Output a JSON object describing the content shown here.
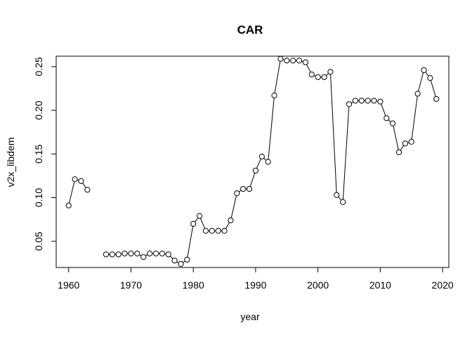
{
  "chart_data": {
    "type": "line",
    "title": "CAR",
    "xlabel": "year",
    "ylabel": "v2x_libdem",
    "xlim": [
      1958,
      2021
    ],
    "ylim": [
      0.02,
      0.262
    ],
    "xticks": [
      1960,
      1970,
      1980,
      1990,
      2000,
      2010,
      2020
    ],
    "yticks": [
      0.05,
      0.1,
      0.15,
      0.2,
      0.25
    ],
    "ytick_labels": [
      "0.05",
      "0.10",
      "0.15",
      "0.20",
      "0.25"
    ],
    "grid": false,
    "marker": "open-circle",
    "x": [
      1960,
      1961,
      1962,
      1963,
      1964,
      1965,
      1966,
      1967,
      1968,
      1969,
      1970,
      1971,
      1972,
      1973,
      1974,
      1975,
      1976,
      1977,
      1978,
      1979,
      1980,
      1981,
      1982,
      1983,
      1984,
      1985,
      1986,
      1987,
      1988,
      1989,
      1990,
      1991,
      1992,
      1993,
      1994,
      1995,
      1996,
      1997,
      1998,
      1999,
      2000,
      2001,
      2002,
      2003,
      2004,
      2005,
      2006,
      2007,
      2008,
      2009,
      2010,
      2011,
      2012,
      2013,
      2014,
      2015,
      2016,
      2017,
      2018,
      2019
    ],
    "values": [
      0.091,
      0.121,
      0.119,
      0.109,
      null,
      null,
      0.035,
      0.035,
      0.035,
      0.036,
      0.036,
      0.036,
      0.032,
      0.036,
      0.036,
      0.036,
      0.035,
      0.028,
      0.024,
      0.029,
      0.07,
      0.079,
      0.062,
      0.062,
      0.062,
      0.062,
      0.074,
      0.105,
      0.11,
      0.11,
      0.131,
      0.147,
      0.141,
      0.217,
      0.259,
      0.257,
      0.257,
      0.257,
      0.255,
      0.241,
      0.238,
      0.238,
      0.244,
      0.103,
      0.095,
      0.207,
      0.211,
      0.211,
      0.211,
      0.211,
      0.21,
      0.191,
      0.185,
      0.152,
      0.162,
      0.164,
      0.219,
      0.246,
      0.237,
      0.213
    ]
  }
}
